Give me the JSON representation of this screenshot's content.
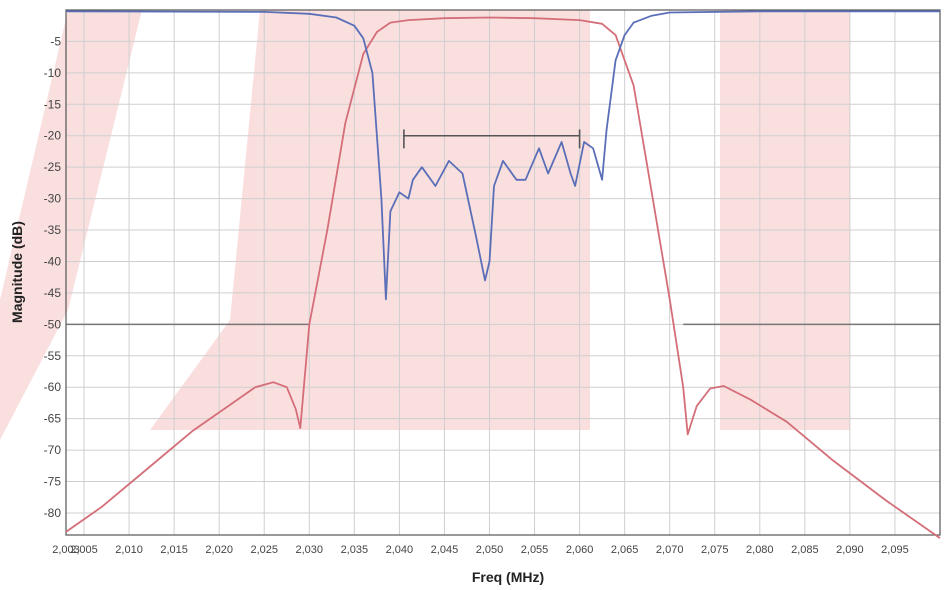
{
  "chart_data": {
    "type": "line",
    "xlabel": "Freq (MHz)",
    "ylabel": "Magnitude (dB)",
    "xlim": [
      2.003,
      2.1
    ],
    "ylim": [
      -83.5,
      0
    ],
    "grid": true,
    "x_ticks": [
      {
        "value": 2.003,
        "label": "2,003"
      },
      {
        "value": 2.005,
        "label": "2,005"
      },
      {
        "value": 2.01,
        "label": "2,010"
      },
      {
        "value": 2.015,
        "label": "2,015"
      },
      {
        "value": 2.02,
        "label": "2,020"
      },
      {
        "value": 2.025,
        "label": "2,025"
      },
      {
        "value": 2.03,
        "label": "2,030"
      },
      {
        "value": 2.035,
        "label": "2,035"
      },
      {
        "value": 2.04,
        "label": "2,040"
      },
      {
        "value": 2.045,
        "label": "2,045"
      },
      {
        "value": 2.05,
        "label": "2,050"
      },
      {
        "value": 2.055,
        "label": "2,055"
      },
      {
        "value": 2.06,
        "label": "2,060"
      },
      {
        "value": 2.065,
        "label": "2,065"
      },
      {
        "value": 2.07,
        "label": "2,070"
      },
      {
        "value": 2.075,
        "label": "2,075"
      },
      {
        "value": 2.08,
        "label": "2,080"
      },
      {
        "value": 2.085,
        "label": "2,085"
      },
      {
        "value": 2.09,
        "label": "2,090"
      },
      {
        "value": 2.095,
        "label": "2,095"
      }
    ],
    "y_ticks": [
      {
        "value": -5,
        "label": "-5"
      },
      {
        "value": -10,
        "label": "-10"
      },
      {
        "value": -15,
        "label": "-15"
      },
      {
        "value": -20,
        "label": "-20"
      },
      {
        "value": -25,
        "label": "-25"
      },
      {
        "value": -30,
        "label": "-30"
      },
      {
        "value": -35,
        "label": "-35"
      },
      {
        "value": -40,
        "label": "-40"
      },
      {
        "value": -45,
        "label": "-45"
      },
      {
        "value": -50,
        "label": "-50"
      },
      {
        "value": -55,
        "label": "-55"
      },
      {
        "value": -60,
        "label": "-60"
      },
      {
        "value": -65,
        "label": "-65"
      },
      {
        "value": -70,
        "label": "-70"
      },
      {
        "value": -75,
        "label": "-75"
      },
      {
        "value": -80,
        "label": "-80"
      }
    ],
    "series": [
      {
        "color": "#d46e78",
        "x": [
          2.003,
          2.007,
          2.012,
          2.017,
          2.021,
          2.024,
          2.026,
          2.0275,
          2.0285,
          2.029,
          2.03,
          2.032,
          2.034,
          2.036,
          2.0375,
          2.039,
          2.041,
          2.045,
          2.05,
          2.055,
          2.06,
          2.0625,
          2.064,
          2.066,
          2.068,
          2.07,
          2.0715,
          2.072,
          2.073,
          2.0745,
          2.076,
          2.079,
          2.083,
          2.088,
          2.094,
          2.1
        ],
        "y": [
          -83,
          -79,
          -73,
          -67,
          -63,
          -60,
          -59.2,
          -60,
          -63.5,
          -66.5,
          -50,
          -35,
          -18,
          -7,
          -3.5,
          -2,
          -1.6,
          -1.3,
          -1.2,
          -1.3,
          -1.6,
          -2.2,
          -4,
          -12,
          -29,
          -46,
          -60,
          -67.5,
          -63,
          -60.2,
          -59.8,
          -62,
          -65.5,
          -71.5,
          -78,
          -84
        ]
      },
      {
        "color": "#5a6fb8",
        "x": [
          2.003,
          2.025,
          2.03,
          2.033,
          2.035,
          2.036,
          2.037,
          2.038,
          2.0385,
          2.039,
          2.04,
          2.041,
          2.0415,
          2.0425,
          2.044,
          2.0455,
          2.047,
          2.0485,
          2.0495,
          2.05,
          2.0505,
          2.0515,
          2.053,
          2.054,
          2.0555,
          2.0565,
          2.058,
          2.059,
          2.0595,
          2.0605,
          2.0615,
          2.0625,
          2.063,
          2.064,
          2.065,
          2.066,
          2.068,
          2.07,
          2.08,
          2.1
        ],
        "y": [
          -0.2,
          -0.3,
          -0.6,
          -1.2,
          -2.5,
          -4.5,
          -10,
          -30,
          -46,
          -32,
          -29,
          -30,
          -27,
          -25,
          -28,
          -24,
          -26,
          -36,
          -43,
          -40,
          -28,
          -24,
          -27,
          -27,
          -22,
          -26,
          -21,
          -26,
          -28,
          -21,
          -22,
          -27,
          -19,
          -8,
          -4,
          -2,
          -0.9,
          -0.4,
          -0.2,
          -0.2
        ]
      }
    ],
    "reference_lines": [
      {
        "y": -50,
        "x_start": 2.003,
        "x_end": 2.03,
        "color": "#777777"
      },
      {
        "y": -50,
        "x_start": 2.0715,
        "x_end": 2.1,
        "color": "#777777"
      },
      {
        "y": -20,
        "x_start": 2.0405,
        "x_end": 2.06,
        "color": "#555555",
        "cap_low": -19,
        "cap_high": -22
      }
    ]
  }
}
